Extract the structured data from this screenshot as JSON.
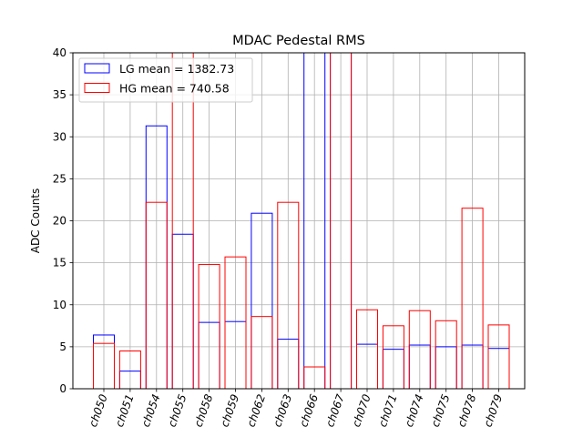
{
  "chart_data": {
    "type": "bar",
    "title": "MDAC Pedestal RMS",
    "xlabel": "",
    "ylabel": "ADC Counts",
    "ylim": [
      0,
      40
    ],
    "yticks": [
      0,
      5,
      10,
      15,
      20,
      25,
      30,
      35,
      40
    ],
    "grid": true,
    "legend_position": "top-left",
    "categories": [
      "ch050",
      "ch051",
      "ch054",
      "ch055",
      "ch058",
      "ch059",
      "ch062",
      "ch063",
      "ch066",
      "ch067",
      "ch070",
      "ch071",
      "ch074",
      "ch075",
      "ch078",
      "ch079"
    ],
    "series": [
      {
        "name": "LG mean = 1382.73",
        "color": "#0000ff",
        "values": [
          6.4,
          2.1,
          31.3,
          18.4,
          7.9,
          8.0,
          20.9,
          5.9,
          40.0,
          40.0,
          5.3,
          4.7,
          5.2,
          5.0,
          5.2,
          4.8
        ]
      },
      {
        "name": "HG mean = 740.58",
        "color": "#ff0000",
        "values": [
          5.4,
          4.5,
          22.2,
          40.0,
          14.8,
          15.7,
          8.6,
          22.2,
          2.6,
          40.0,
          9.4,
          7.5,
          9.3,
          8.1,
          21.5,
          7.6
        ]
      }
    ]
  }
}
